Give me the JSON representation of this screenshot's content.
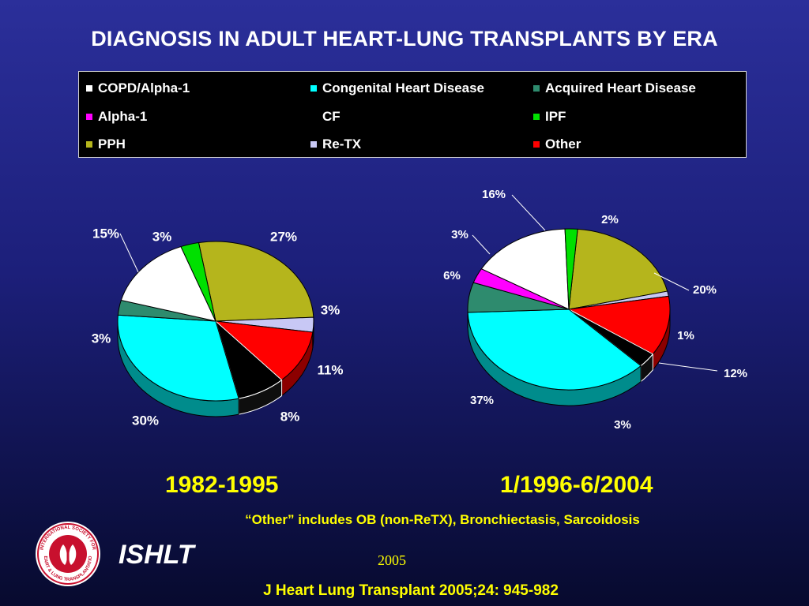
{
  "title": "DIAGNOSIS IN ADULT HEART-LUNG TRANSPLANTS BY ERA",
  "legend": [
    {
      "label": "COPD/Alpha-1",
      "color": "#ffffff"
    },
    {
      "label": "Congenital Heart Disease",
      "color": "#00ffff"
    },
    {
      "label": "Acquired Heart Disease",
      "color": "#2e8b6e"
    },
    {
      "label": "Alpha-1",
      "color": "#ff00ff"
    },
    {
      "label": "CF",
      "color": "#000000"
    },
    {
      "label": "IPF",
      "color": "#00e000"
    },
    {
      "label": "PPH",
      "color": "#b5b51c"
    },
    {
      "label": "Re-TX",
      "color": "#c8c8f5"
    },
    {
      "label": "Other",
      "color": "#ff0000"
    }
  ],
  "chart_data": [
    {
      "type": "pie",
      "title": "1982-1995",
      "slices": [
        {
          "category": "PPH",
          "value": 27
        },
        {
          "category": "Re-TX",
          "value": 3
        },
        {
          "category": "Other",
          "value": 11
        },
        {
          "category": "CF",
          "value": 8
        },
        {
          "category": "Congenital Heart Disease",
          "value": 30
        },
        {
          "category": "Acquired Heart Disease",
          "value": 3
        },
        {
          "category": "COPD/Alpha-1",
          "value": 15
        },
        {
          "category": "IPF",
          "value": 3
        }
      ],
      "labels": [
        "27%",
        "3%",
        "11%",
        "8%",
        "30%",
        "3%",
        "15%",
        "3%"
      ]
    },
    {
      "type": "pie",
      "title": "1/1996-6/2004",
      "slices": [
        {
          "category": "PPH",
          "value": 20
        },
        {
          "category": "Re-TX",
          "value": 1
        },
        {
          "category": "Other",
          "value": 12
        },
        {
          "category": "CF",
          "value": 3
        },
        {
          "category": "Congenital Heart Disease",
          "value": 37
        },
        {
          "category": "Acquired Heart Disease",
          "value": 6
        },
        {
          "category": "Alpha-1",
          "value": 3
        },
        {
          "category": "COPD/Alpha-1",
          "value": 16
        },
        {
          "category": "IPF",
          "value": 2
        }
      ],
      "labels": [
        "20%",
        "1%",
        "12%",
        "3%",
        "37%",
        "6%",
        "3%",
        "16%",
        "2%"
      ]
    }
  ],
  "footnote": "“Other” includes OB (non-ReTX), Bronchiectasis, Sarcoidosis",
  "org": "ISHLT",
  "logo_text": "INTERNATIONAL SOCIETY FOR HEART & LUNG TRANSPLANTATION",
  "year": "2005",
  "citation": "J Heart Lung Transplant 2005;24: 945-982"
}
